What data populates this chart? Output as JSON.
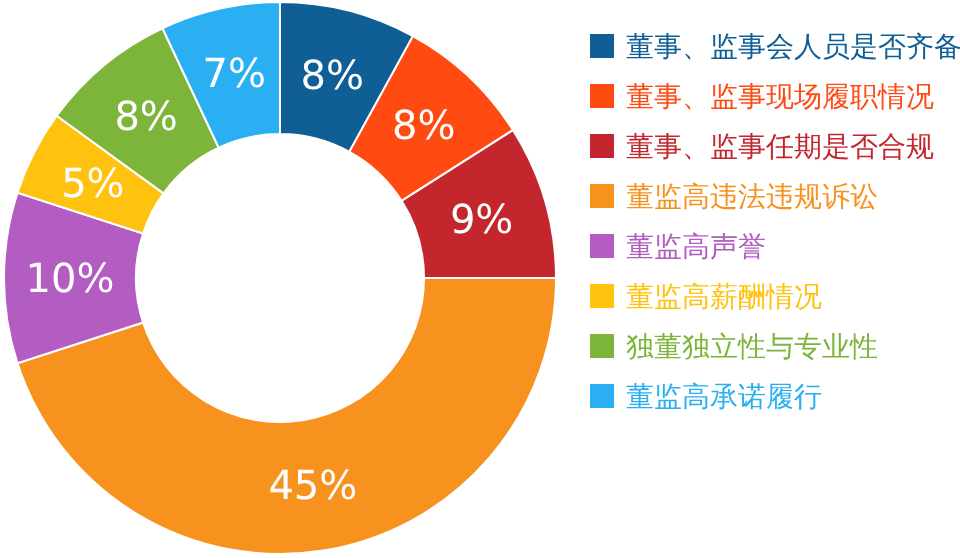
{
  "chart_data": {
    "type": "donut",
    "categories": [
      "董事、监事会人员是否齐备",
      "董事、监事现场履职情况",
      "董事、监事任期是否合规",
      "董监高违法违规诉讼",
      "董监高声誉",
      "董监高薪酬情况",
      "独董独立性与专业性",
      "董监高承诺履行"
    ],
    "values": [
      8,
      8,
      9,
      45,
      10,
      5,
      8,
      7
    ],
    "value_labels": [
      "8%",
      "8%",
      "9%",
      "45%",
      "10%",
      "5%",
      "8%",
      "7%"
    ],
    "colors": [
      "#0f5f96",
      "#ff4a12",
      "#c4262e",
      "#f7921e",
      "#b35cc2",
      "#ffc20e",
      "#7db53b",
      "#2ab0f2"
    ],
    "legend": "right"
  }
}
